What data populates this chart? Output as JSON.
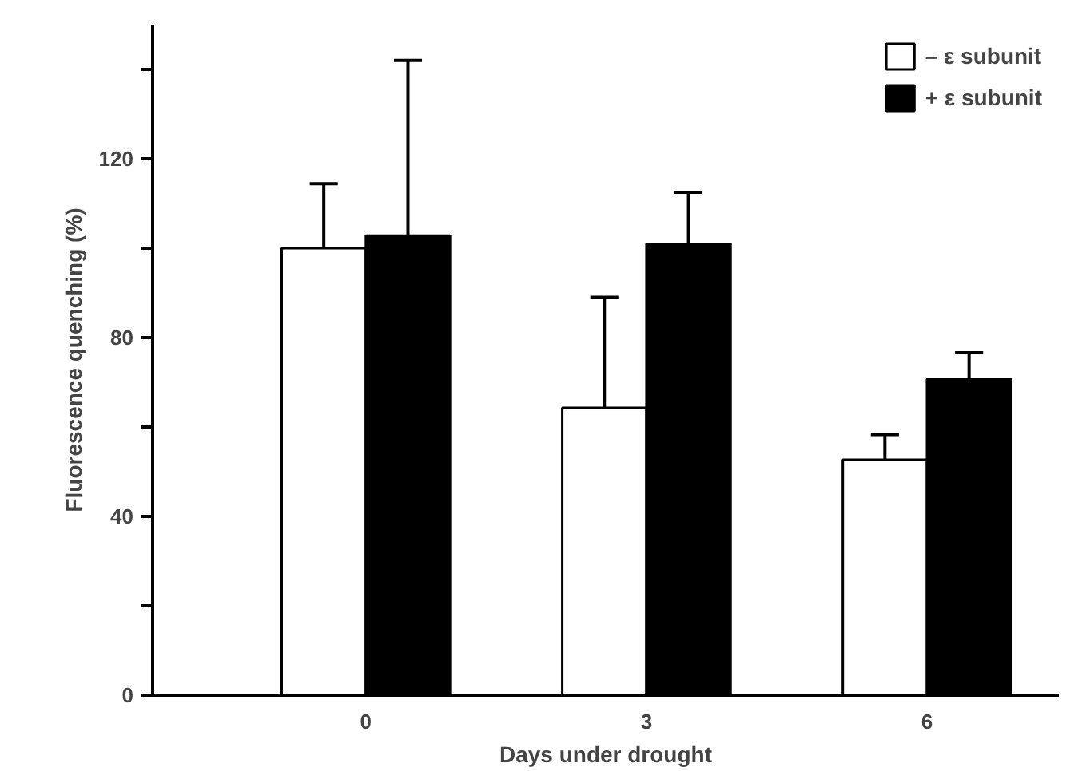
{
  "chart_data": {
    "type": "bar",
    "xlabel": "Days under drought",
    "ylabel": "Fluorescence quenching (%)",
    "categories": [
      "0",
      "3",
      "6"
    ],
    "series": [
      {
        "name": "– ε subunit",
        "color": "#ffffff",
        "values": [
          100,
          64.3,
          52.7
        ],
        "errors": [
          [
            100,
            114.4
          ],
          [
            64.3,
            89
          ],
          [
            52.7,
            58.3
          ]
        ]
      },
      {
        "name": "+ ε subunit",
        "color": "#000000",
        "values": [
          102.8,
          101,
          70.7
        ],
        "errors": [
          [
            102.8,
            142
          ],
          [
            101,
            112.5
          ],
          [
            70.7,
            76.6
          ]
        ]
      }
    ],
    "ylim": [
      0,
      150
    ],
    "yticks": [
      0,
      {
        "value": 20,
        "label": null
      },
      40,
      {
        "value": 60,
        "label": null
      },
      80,
      {
        "value": 100,
        "label": null
      },
      120,
      {
        "value": 140,
        "label": null
      }
    ],
    "grid": false,
    "legend": "top right"
  }
}
